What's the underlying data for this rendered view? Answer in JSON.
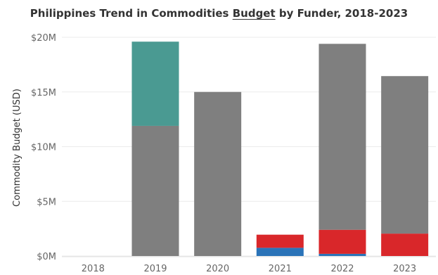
{
  "chart_data": {
    "type": "bar",
    "stacked": true,
    "title_parts": [
      "Philippines Trend in Commodities ",
      "Budget",
      " by Funder, 2018-2023"
    ],
    "ylabel": "Commodity Budget (USD)",
    "xlabel": "",
    "categories": [
      "2018",
      "2019",
      "2020",
      "2021",
      "2022",
      "2023"
    ],
    "y_ticks": [
      "$0M",
      "$5M",
      "$10M",
      "$15M",
      "$20M"
    ],
    "y_tick_values": [
      0,
      5,
      10,
      15,
      20
    ],
    "ylim": [
      0,
      20
    ],
    "grid": "horizontal",
    "series": [
      {
        "color": "#2a73b8",
        "values": [
          0,
          0,
          0,
          0.75,
          0.2,
          0
        ]
      },
      {
        "color": "#d9272a",
        "values": [
          0,
          0,
          0,
          1.2,
          2.2,
          2.05
        ]
      },
      {
        "color": "#7f7f7f",
        "values": [
          0,
          11.9,
          15.0,
          0,
          17.0,
          14.4
        ]
      },
      {
        "color": "#4a9a92",
        "values": [
          0,
          7.7,
          0,
          0,
          0,
          0
        ]
      }
    ]
  }
}
